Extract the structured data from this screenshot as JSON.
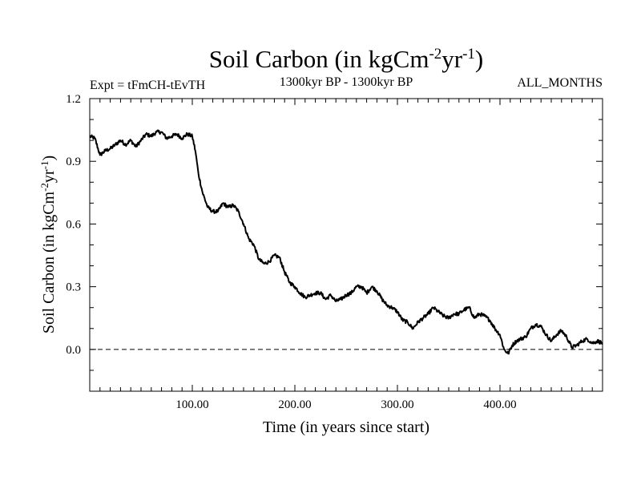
{
  "chart_data": {
    "type": "line",
    "title": {
      "main": "Soil Carbon (in kgCm",
      "sup1": "-2",
      "mid": "yr",
      "sup2": "-1",
      "end": ")"
    },
    "subtitle_left": "Expt = tFmCH-tEvTH",
    "subtitle_center": "1300kyr BP - 1300kyr BP",
    "subtitle_right": "ALL_MONTHS",
    "xlabel": "Time (in years since start)",
    "ylabel": {
      "main": "Soil Carbon (in kgCm",
      "sup1": "-2",
      "mid": "yr",
      "sup2": "-1",
      "end": ")"
    },
    "xlim": [
      0,
      500
    ],
    "ylim": [
      -0.2,
      1.2
    ],
    "xticks": [
      {
        "value": 100,
        "label": "100.00"
      },
      {
        "value": 200,
        "label": "200.00"
      },
      {
        "value": 300,
        "label": "300.00"
      },
      {
        "value": 400,
        "label": "400.00"
      }
    ],
    "yticks": [
      {
        "value": 0.0,
        "label": "0.0"
      },
      {
        "value": 0.3,
        "label": "0.3"
      },
      {
        "value": 0.6,
        "label": "0.6"
      },
      {
        "value": 0.9,
        "label": "0.9"
      },
      {
        "value": 1.2,
        "label": "1.2"
      }
    ],
    "reference_line": {
      "y": 0.0,
      "style": "dashed"
    },
    "series": [
      {
        "name": "Soil Carbon",
        "x": [
          0,
          5,
          10,
          15,
          20,
          25,
          30,
          35,
          40,
          45,
          50,
          55,
          60,
          65,
          70,
          75,
          80,
          85,
          90,
          95,
          100,
          103,
          106,
          110,
          115,
          120,
          125,
          130,
          135,
          140,
          145,
          150,
          155,
          160,
          165,
          170,
          175,
          180,
          185,
          190,
          195,
          200,
          205,
          210,
          215,
          220,
          225,
          230,
          235,
          240,
          245,
          250,
          255,
          260,
          265,
          270,
          275,
          280,
          285,
          290,
          295,
          300,
          305,
          310,
          315,
          320,
          325,
          330,
          335,
          340,
          345,
          350,
          355,
          360,
          365,
          370,
          375,
          380,
          385,
          390,
          395,
          400,
          404,
          408,
          412,
          416,
          420,
          425,
          430,
          435,
          440,
          445,
          450,
          455,
          460,
          465,
          470,
          475,
          480,
          485,
          490,
          495,
          500
        ],
        "values": [
          1.02,
          1.01,
          0.93,
          0.95,
          0.96,
          0.98,
          1.0,
          0.98,
          1.0,
          0.97,
          1.0,
          1.03,
          1.02,
          1.04,
          1.04,
          1.01,
          1.02,
          1.03,
          1.01,
          1.03,
          1.02,
          0.95,
          0.84,
          0.75,
          0.68,
          0.66,
          0.66,
          0.7,
          0.68,
          0.69,
          0.66,
          0.6,
          0.53,
          0.5,
          0.43,
          0.41,
          0.42,
          0.45,
          0.44,
          0.37,
          0.32,
          0.3,
          0.27,
          0.25,
          0.26,
          0.27,
          0.27,
          0.24,
          0.26,
          0.23,
          0.24,
          0.26,
          0.27,
          0.3,
          0.3,
          0.27,
          0.3,
          0.28,
          0.24,
          0.21,
          0.2,
          0.18,
          0.14,
          0.13,
          0.1,
          0.13,
          0.15,
          0.17,
          0.2,
          0.18,
          0.16,
          0.15,
          0.17,
          0.17,
          0.19,
          0.2,
          0.15,
          0.17,
          0.16,
          0.14,
          0.1,
          0.07,
          0.0,
          -0.02,
          0.02,
          0.04,
          0.05,
          0.06,
          0.1,
          0.12,
          0.11,
          0.07,
          0.04,
          0.07,
          0.09,
          0.06,
          0.01,
          0.02,
          0.04,
          0.05,
          0.03,
          0.04,
          0.03
        ]
      }
    ]
  }
}
